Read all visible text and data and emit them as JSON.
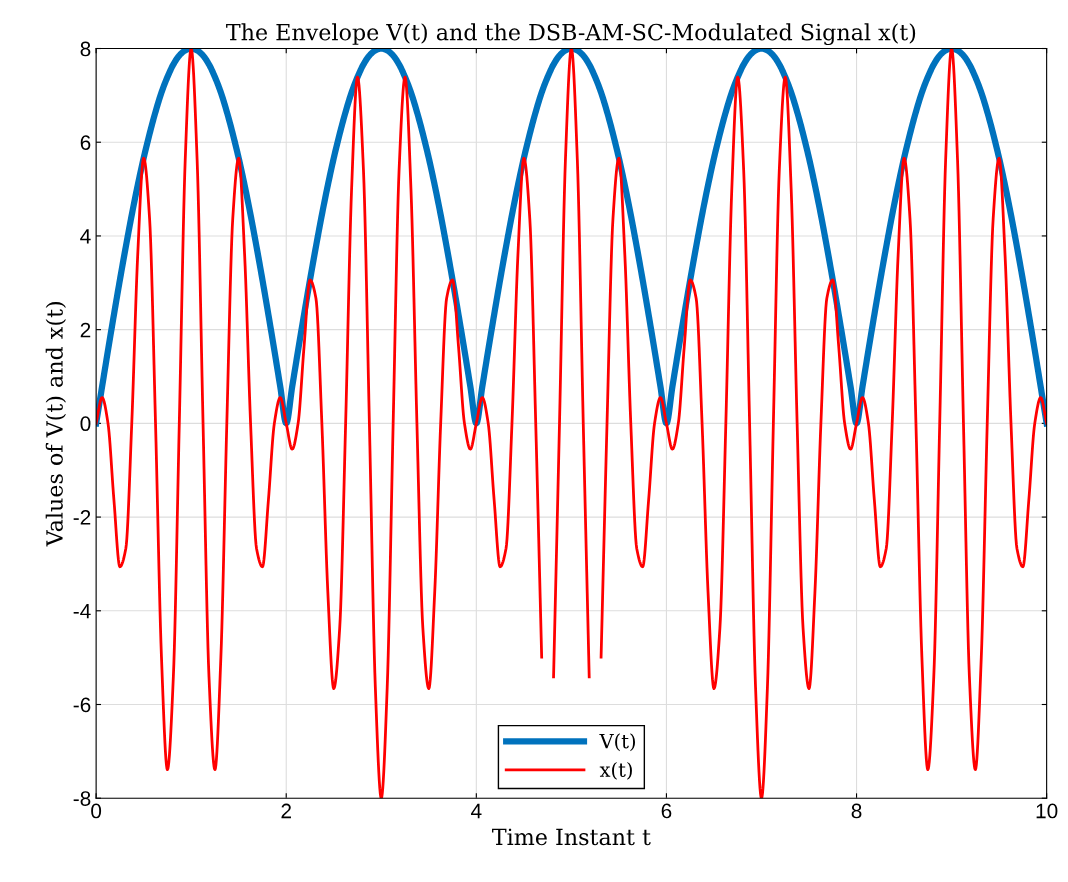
{
  "chart_data": {
    "type": "line",
    "title": "The Envelope V(t) and the DSB-AM-SC-Modulated Signal x(t)",
    "xlabel": "Time Instant t",
    "ylabel": "Values of V(t) and x(t)",
    "x": [
      0,
      0.0625,
      0.125,
      0.1875,
      0.25,
      0.3125,
      0.375,
      0.4375,
      0.5,
      0.5625,
      0.625,
      0.6875,
      0.75,
      0.8125,
      0.875,
      0.9375,
      1,
      1.0625,
      1.125,
      1.1875,
      1.25,
      1.3125,
      1.375,
      1.4375,
      1.5,
      1.5625,
      1.625,
      1.6875,
      1.75,
      1.8125,
      1.875,
      1.9375,
      2,
      2.0625,
      2.125,
      2.1875,
      2.25,
      2.3125,
      2.375,
      2.4375,
      2.5,
      2.5625,
      2.625,
      2.6875,
      2.75,
      2.8125,
      2.875,
      2.9375,
      3,
      3.0625,
      3.125,
      3.1875,
      3.25,
      3.3125,
      3.375,
      3.4375,
      3.5,
      3.5625,
      3.625,
      3.6875,
      3.75,
      3.8125,
      3.875,
      3.9375,
      4,
      4.0625,
      4.125,
      4.1875,
      4.25,
      4.3125,
      4.375,
      4.4375,
      4.5,
      4.5625,
      4.625,
      4.6875,
      4.75,
      4.8125,
      4.875,
      4.9375,
      5,
      5.0625,
      5.125,
      5.1875,
      5.25,
      5.3125,
      5.375,
      5.4375,
      5.5,
      5.5625,
      5.625,
      5.6875,
      5.75,
      5.8125,
      5.875,
      5.9375,
      6,
      6.0625,
      6.125,
      6.1875,
      6.25,
      6.3125,
      6.375,
      6.4375,
      6.5,
      6.5625,
      6.625,
      6.6875,
      6.75,
      6.8125,
      6.875,
      6.9375,
      7,
      7.0625,
      7.125,
      7.1875,
      7.25,
      7.3125,
      7.375,
      7.4375,
      7.5,
      7.5625,
      7.625,
      7.6875,
      7.75,
      7.8125,
      7.875,
      7.9375,
      8,
      8.0625,
      8.125,
      8.1875,
      8.25,
      8.3125,
      8.375,
      8.4375,
      8.5,
      8.5625,
      8.625,
      8.6875,
      8.75,
      8.8125,
      8.875,
      8.9375,
      9,
      9.0625,
      9.125,
      9.1875,
      9.25,
      9.3125,
      9.375,
      9.4375,
      9.5,
      9.5625,
      9.625,
      9.6875,
      9.75,
      9.8125,
      9.875,
      9.9375,
      10
    ],
    "series": [
      {
        "name": "V(t)",
        "color": "#0072bd",
        "values": [
          0,
          0.78,
          1.56,
          2.32,
          3.06,
          3.77,
          4.45,
          5.08,
          5.66,
          6.18,
          6.65,
          7.06,
          7.39,
          7.66,
          7.85,
          7.96,
          8,
          7.96,
          7.85,
          7.66,
          7.39,
          7.06,
          6.65,
          6.18,
          5.66,
          5.08,
          4.45,
          3.77,
          3.06,
          2.32,
          1.56,
          0.78,
          0,
          0.78,
          1.56,
          2.32,
          3.06,
          3.77,
          4.45,
          5.08,
          5.66,
          6.18,
          6.65,
          7.06,
          7.39,
          7.66,
          7.85,
          7.96,
          8,
          7.96,
          7.85,
          7.66,
          7.39,
          7.06,
          6.65,
          6.18,
          5.66,
          5.08,
          4.45,
          3.77,
          3.06,
          2.32,
          1.56,
          0.78,
          0,
          0.78,
          1.56,
          2.32,
          3.06,
          3.77,
          4.45,
          5.08,
          5.66,
          6.18,
          6.65,
          7.06,
          7.39,
          7.66,
          7.85,
          7.96,
          8,
          7.96,
          7.85,
          7.66,
          7.39,
          7.06,
          6.65,
          6.18,
          5.66,
          5.08,
          4.45,
          3.77,
          3.06,
          2.32,
          1.56,
          0.78,
          0,
          0.78,
          1.56,
          2.32,
          3.06,
          3.77,
          4.45,
          5.08,
          5.66,
          6.18,
          6.65,
          7.06,
          7.39,
          7.66,
          7.85,
          7.96,
          8,
          7.96,
          7.85,
          7.66,
          7.39,
          7.06,
          6.65,
          6.18,
          5.66,
          5.08,
          4.45,
          3.77,
          3.06,
          2.32,
          1.56,
          0.78,
          0,
          0.78,
          1.56,
          2.32,
          3.06,
          3.77,
          4.45,
          5.08,
          5.66,
          6.18,
          6.65,
          7.06,
          7.39,
          7.66,
          7.85,
          7.96,
          8,
          7.96,
          7.85,
          7.66,
          7.39,
          7.06,
          6.65,
          6.18,
          5.66,
          5.08,
          4.45,
          3.77,
          3.06,
          2.32,
          1.56,
          0.78,
          0
        ]
      },
      {
        "name": "x(t)",
        "color": "#ff0000",
        "values": [
          0,
          0.55,
          0,
          -1.64,
          -3.06,
          -2.67,
          0,
          3.59,
          5.66,
          4.37,
          0,
          -4.99,
          -7.39,
          -5.41,
          0,
          5.63,
          8,
          5.63,
          0,
          -5.41,
          -7.39,
          -4.99,
          0,
          4.37,
          5.66,
          3.59,
          0,
          -2.67,
          -3.06,
          -1.64,
          0,
          0.55,
          0,
          -0.55,
          0,
          1.64,
          3.06,
          2.67,
          0,
          -3.59,
          -5.66,
          -4.37,
          0,
          4.99,
          7.39,
          5.41,
          0,
          -5.63,
          -8,
          -5.63,
          0,
          5.41,
          7.39,
          4.99,
          0,
          -4.37,
          -5.66,
          -3.59,
          0,
          2.67,
          3.06,
          1.64,
          0,
          -0.55,
          0,
          0.55,
          0,
          -1.64,
          -3.06,
          -2.67,
          0,
          3.59,
          5.66,
          4.37,
          0,
          -4.99,
          null,
          -5.41,
          0,
          5.63,
          8,
          5.63,
          0,
          -5.41,
          null,
          -4.99,
          0,
          4.37,
          5.66,
          3.59,
          0,
          -2.67,
          -3.06,
          -1.64,
          0,
          0.55,
          0,
          -0.55,
          0,
          1.64,
          3.06,
          2.67,
          0,
          -3.59,
          -5.66,
          -4.37,
          0,
          4.99,
          7.39,
          5.41,
          0,
          -5.63,
          -8,
          -5.63,
          0,
          5.41,
          7.39,
          4.99,
          0,
          -4.37,
          -5.66,
          -3.59,
          0,
          2.67,
          3.06,
          1.64,
          0,
          -0.55,
          0,
          0.55,
          0,
          -1.64,
          -3.06,
          -2.67,
          0,
          3.59,
          5.66,
          4.37,
          0,
          -4.99,
          -7.39,
          -5.41,
          0,
          5.63,
          8,
          5.63,
          0,
          -5.41,
          -7.39,
          -4.99,
          0,
          4.37,
          5.66,
          3.59,
          0,
          -2.67,
          -3.06,
          -1.64,
          0,
          0.55,
          0
        ]
      }
    ],
    "xlim": [
      0,
      10
    ],
    "xticks": [
      0,
      2,
      4,
      6,
      8,
      10
    ],
    "ylim": [
      -8,
      8
    ],
    "yticks": [
      -8,
      -6,
      -4,
      -2,
      0,
      2,
      4,
      6,
      8
    ],
    "grid": true,
    "legend": "bottom",
    "marker": "none",
    "line_style": "solid"
  }
}
